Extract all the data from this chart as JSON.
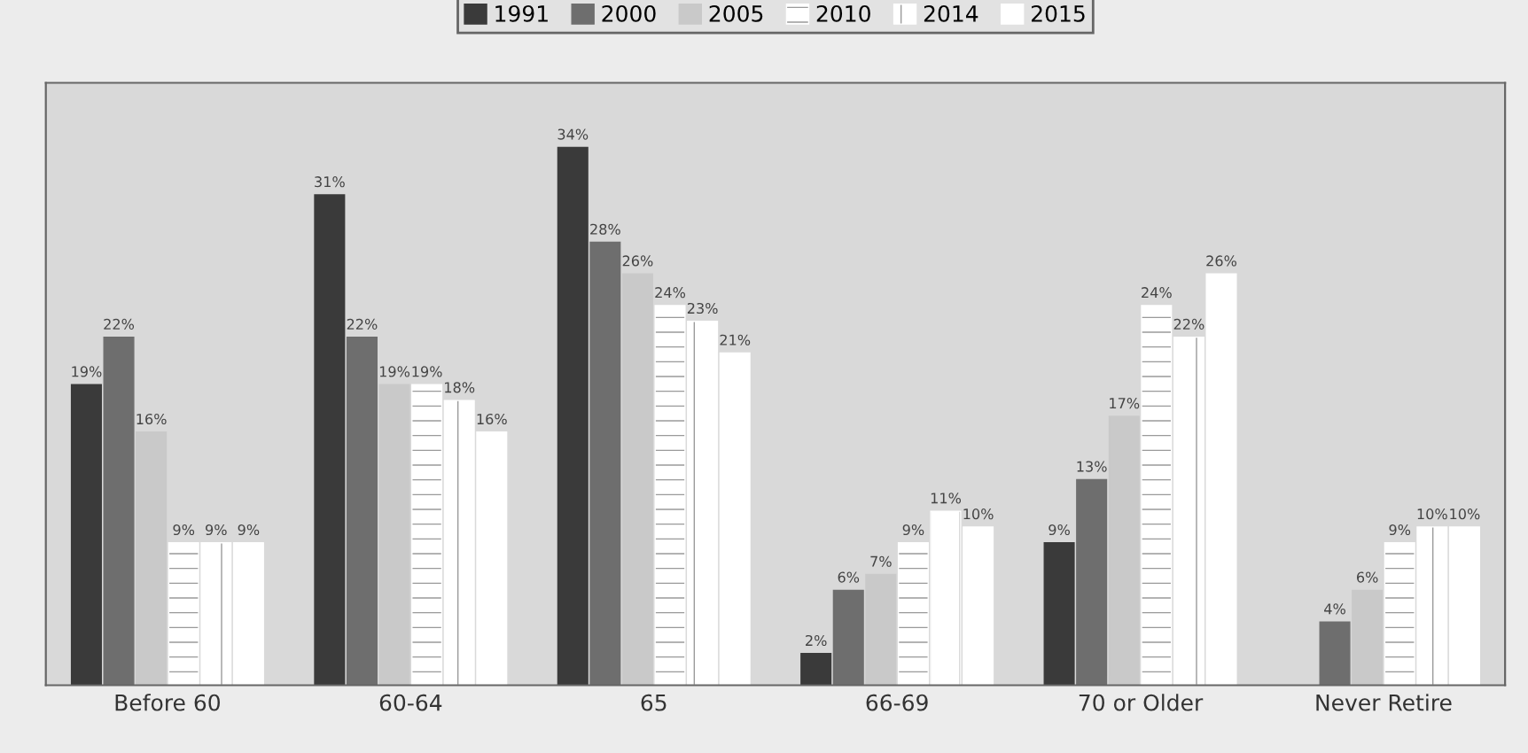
{
  "chart_data": {
    "type": "bar",
    "categories": [
      "Before 60",
      "60-64",
      "65",
      "66-69",
      "70 or Older",
      "Never Retire"
    ],
    "series": [
      {
        "name": "1991",
        "color": "#3a3a3a",
        "values": [
          19,
          31,
          34,
          2,
          9,
          null
        ],
        "value_labels": [
          "19%",
          "31%",
          "34%",
          "2%",
          "9%",
          null
        ]
      },
      {
        "name": "2000",
        "color": "#6e6e6e",
        "values": [
          22,
          22,
          28,
          6,
          13,
          4
        ],
        "value_labels": [
          "22%",
          "22%",
          "28%",
          "6%",
          "13%",
          "4%"
        ]
      },
      {
        "name": "2005",
        "color": "#c9c9c9",
        "values": [
          16,
          19,
          26,
          7,
          17,
          6
        ],
        "value_labels": [
          "16%",
          "19%",
          "26%",
          "7%",
          "17%",
          "6%"
        ]
      },
      {
        "name": "2010",
        "color": "#ffffff",
        "values": [
          9,
          19,
          24,
          9,
          24,
          9
        ],
        "value_labels": [
          "9%",
          "19%",
          "24%",
          "9%",
          "24%",
          "9%"
        ]
      },
      {
        "name": "2014",
        "color": "#ffffff",
        "values": [
          9,
          18,
          23,
          11,
          22,
          10
        ],
        "value_labels": [
          "9%",
          "18%",
          "23%",
          "11%",
          "22%",
          "10%"
        ]
      },
      {
        "name": "2015",
        "color": "#ffffff",
        "values": [
          9,
          16,
          21,
          10,
          26,
          10
        ],
        "value_labels": [
          "9%",
          "16%",
          "21%",
          "10%",
          "26%",
          "10%"
        ]
      }
    ],
    "legend": "top"
  }
}
